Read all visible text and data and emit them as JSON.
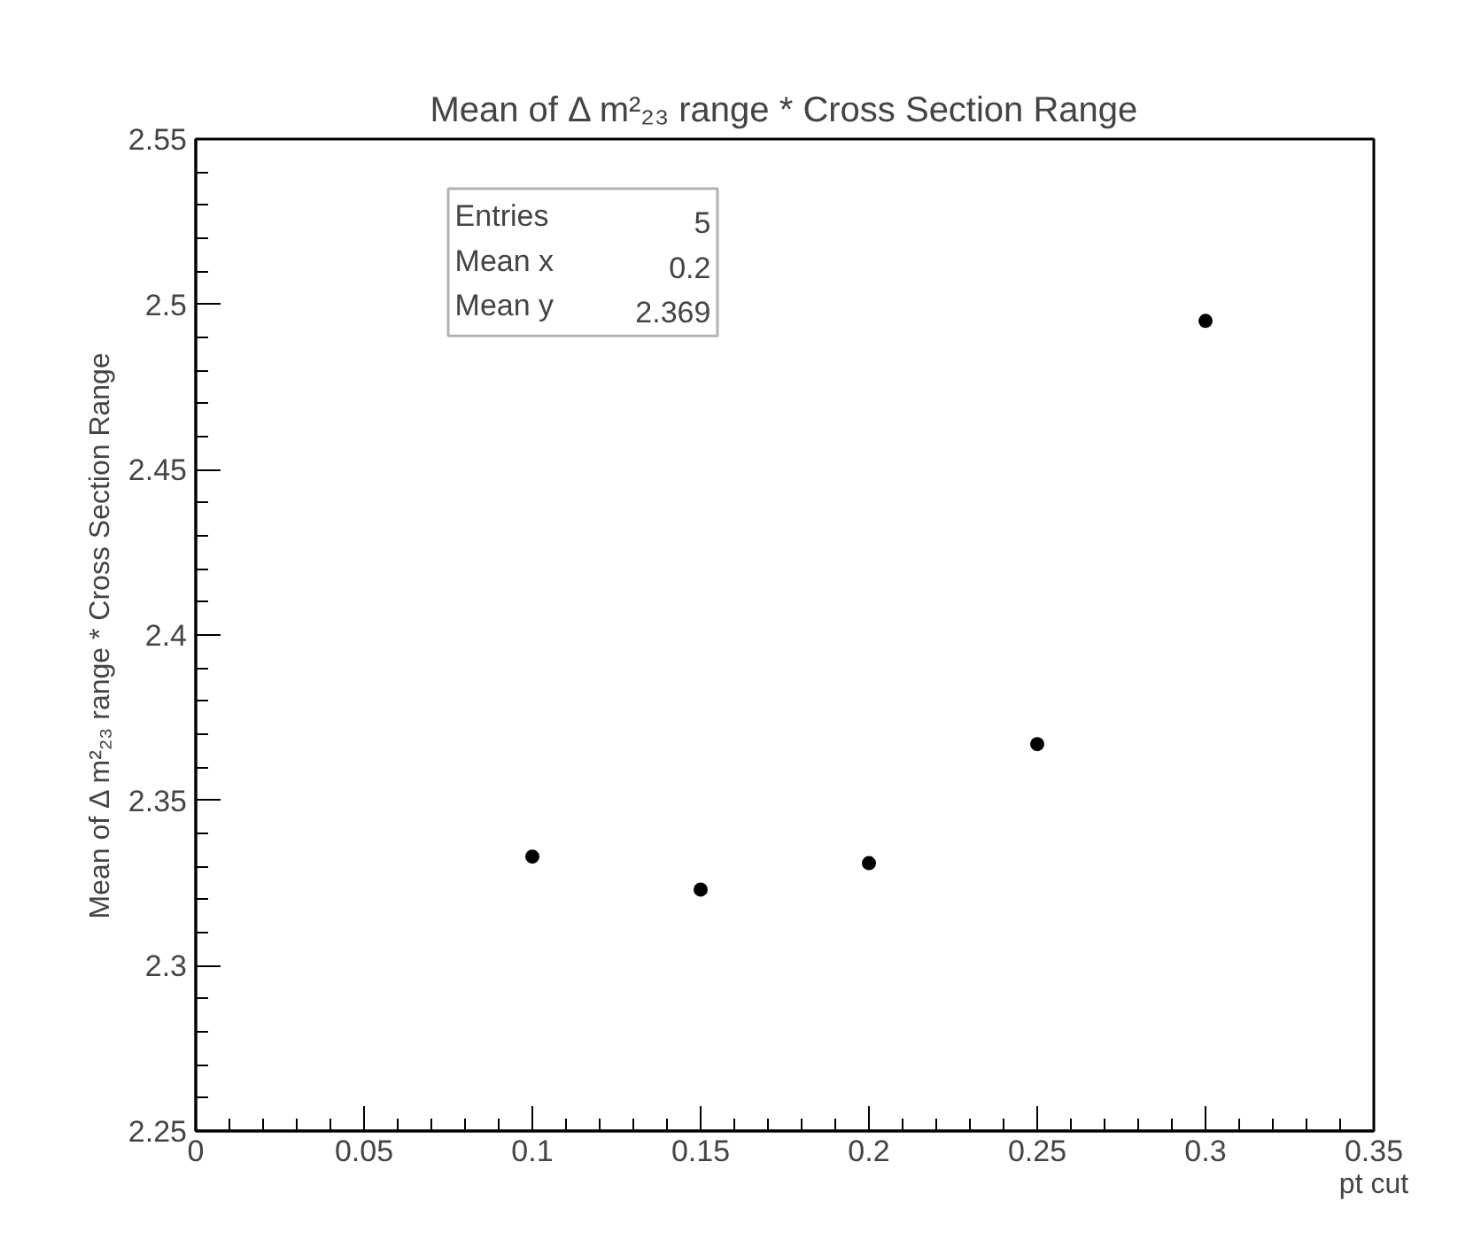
{
  "chart_data": {
    "type": "scatter",
    "title": "Mean of Δ m²₂₃ range * Cross Section Range",
    "xlabel": "pt cut",
    "ylabel": "Mean of Δ m²₂₃ range * Cross Section Range",
    "x": [
      0.1,
      0.15,
      0.2,
      0.25,
      0.3
    ],
    "values": [
      2.333,
      2.323,
      2.331,
      2.367,
      2.495
    ],
    "color": "#000000",
    "marker": "circle",
    "grid": false,
    "xlim": [
      0,
      0.35
    ],
    "xticks": [
      0,
      0.05,
      0.1,
      0.15,
      0.2,
      0.25,
      0.3,
      0.35
    ],
    "ylim": [
      2.25,
      2.55
    ],
    "yticks": [
      2.25,
      2.3,
      2.35,
      2.4,
      2.45,
      2.5,
      2.55
    ],
    "annotations": [
      "Entries",
      "5",
      "Mean x",
      "0.2",
      "Mean y",
      "2.369"
    ]
  }
}
